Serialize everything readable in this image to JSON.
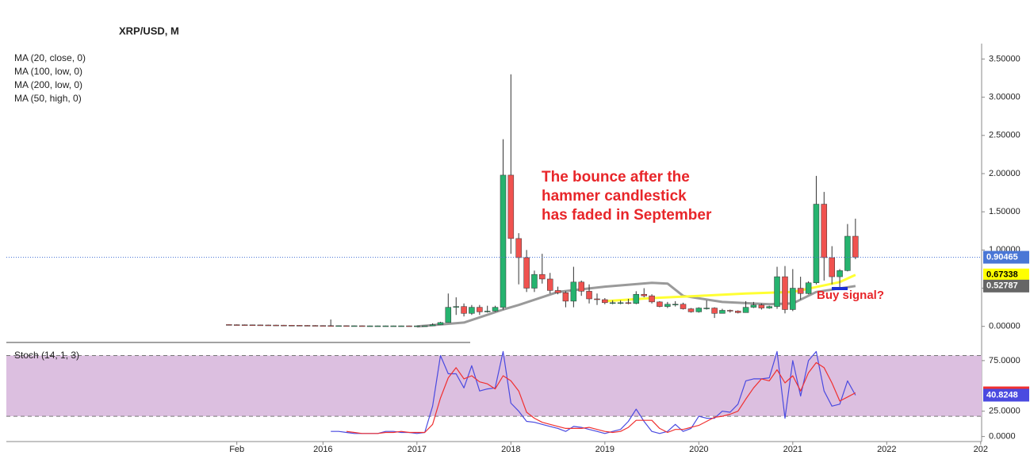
{
  "chart_data": [
    {
      "type": "candlestick",
      "title": "XRP/USD, M",
      "indicator_labels": [
        "MA (20, close, 0)",
        "MA (100, low, 0)",
        "MA (200, low, 0)",
        "MA (50, high, 0)"
      ],
      "annotation": [
        "The bounce after the",
        "hammer candlestick",
        "has faded in September"
      ],
      "annotation_2": "Buy signal?",
      "up_color": "#26b36f",
      "down_color": "#f0524f",
      "xlim": [
        2012.63,
        2023.01
      ],
      "xticks": [
        {
          "value": 2015.083,
          "label": "Feb"
        },
        2016,
        2017,
        2018,
        2019,
        2020,
        2021,
        2022,
        {
          "value": 2023,
          "label": "202"
        }
      ],
      "ylim": [
        -0.19,
        3.65
      ],
      "yticks": [
        {
          "value": 0,
          "label": "0.00000"
        },
        {
          "value": 0.5,
          "label": "0.50000"
        },
        {
          "value": 1,
          "label": "1.00000"
        },
        {
          "value": 1.5,
          "label": "1.50000"
        },
        {
          "value": 2,
          "label": "2.00000"
        },
        {
          "value": 2.5,
          "label": "2.50000"
        },
        {
          "value": 3,
          "label": "3.00000"
        },
        {
          "value": 3.5,
          "label": "3.50000"
        }
      ],
      "x": [
        2015,
        2015.083,
        2015.167,
        2015.25,
        2015.333,
        2015.417,
        2015.5,
        2015.583,
        2015.667,
        2015.75,
        2015.833,
        2015.917,
        2016,
        2016.083,
        2016.167,
        2016.25,
        2016.333,
        2016.417,
        2016.5,
        2016.583,
        2016.667,
        2016.75,
        2016.833,
        2016.917,
        2017,
        2017.083,
        2017.167,
        2017.25,
        2017.333,
        2017.417,
        2017.5,
        2017.583,
        2017.667,
        2017.75,
        2017.833,
        2017.917,
        2018,
        2018.083,
        2018.167,
        2018.25,
        2018.333,
        2018.417,
        2018.5,
        2018.583,
        2018.667,
        2018.75,
        2018.833,
        2018.917,
        2019,
        2019.083,
        2019.167,
        2019.25,
        2019.333,
        2019.417,
        2019.5,
        2019.583,
        2019.667,
        2019.75,
        2019.833,
        2019.917,
        2020,
        2020.083,
        2020.167,
        2020.25,
        2020.333,
        2020.417,
        2020.5,
        2020.583,
        2020.667,
        2020.75,
        2020.833,
        2020.917,
        2021,
        2021.083,
        2021.167,
        2021.25,
        2021.333,
        2021.417,
        2021.5,
        2021.583,
        2021.667
      ],
      "open": [
        0.024,
        0.022,
        0.021,
        0.02,
        0.019,
        0.018,
        0.017,
        0.016,
        0.015,
        0.014,
        0.013,
        0.012,
        0.011,
        0.01,
        0.009,
        0.009,
        0.008,
        0.008,
        0.007,
        0.007,
        0.007,
        0.007,
        0.007,
        0.007,
        0.0065,
        0.0065,
        0.007,
        0.022,
        0.05,
        0.25,
        0.26,
        0.17,
        0.25,
        0.19,
        0.2,
        0.25,
        1.98,
        1.15,
        0.9,
        0.5,
        0.68,
        0.62,
        0.47,
        0.44,
        0.33,
        0.58,
        0.46,
        0.36,
        0.35,
        0.31,
        0.31,
        0.31,
        0.3,
        0.42,
        0.4,
        0.32,
        0.26,
        0.29,
        0.29,
        0.23,
        0.19,
        0.24,
        0.24,
        0.17,
        0.21,
        0.2,
        0.18,
        0.25,
        0.28,
        0.24,
        0.26,
        0.65,
        0.22,
        0.5,
        0.43,
        0.57,
        1.6,
        0.9,
        0.65,
        0.73,
        1.18
      ],
      "high": [
        0.027,
        0.025,
        0.024,
        0.023,
        0.022,
        0.021,
        0.02,
        0.019,
        0.018,
        0.017,
        0.016,
        0.015,
        0.013,
        0.09,
        0.012,
        0.011,
        0.01,
        0.01,
        0.009,
        0.009,
        0.009,
        0.009,
        0.009,
        0.009,
        0.0075,
        0.0075,
        0.04,
        0.06,
        0.43,
        0.38,
        0.3,
        0.28,
        0.28,
        0.27,
        0.27,
        2.45,
        3.3,
        1.22,
        1.0,
        0.73,
        0.95,
        0.7,
        0.52,
        0.46,
        0.78,
        0.6,
        0.55,
        0.43,
        0.37,
        0.34,
        0.34,
        0.36,
        0.46,
        0.5,
        0.42,
        0.33,
        0.32,
        0.33,
        0.31,
        0.24,
        0.25,
        0.34,
        0.25,
        0.23,
        0.22,
        0.21,
        0.33,
        0.32,
        0.3,
        0.27,
        0.78,
        0.79,
        0.75,
        0.65,
        0.59,
        1.97,
        1.76,
        1.05,
        0.75,
        1.34,
        1.41
      ],
      "low": [
        0.019,
        0.018,
        0.017,
        0.016,
        0.015,
        0.014,
        0.013,
        0.012,
        0.011,
        0.01,
        0.009,
        0.008,
        0.008,
        0.007,
        0.007,
        0.006,
        0.006,
        0.005,
        0.005,
        0.005,
        0.005,
        0.005,
        0.005,
        0.005,
        0.0055,
        0.0055,
        0.0058,
        0.02,
        0.05,
        0.15,
        0.13,
        0.15,
        0.15,
        0.18,
        0.19,
        0.22,
        0.95,
        0.55,
        0.45,
        0.45,
        0.56,
        0.43,
        0.42,
        0.25,
        0.25,
        0.4,
        0.3,
        0.28,
        0.29,
        0.29,
        0.29,
        0.29,
        0.29,
        0.38,
        0.3,
        0.25,
        0.24,
        0.26,
        0.22,
        0.18,
        0.18,
        0.22,
        0.11,
        0.17,
        0.18,
        0.17,
        0.18,
        0.24,
        0.22,
        0.23,
        0.23,
        0.17,
        0.2,
        0.35,
        0.42,
        0.55,
        0.6,
        0.55,
        0.5,
        0.72,
        0.88
      ],
      "close": [
        0.022,
        0.021,
        0.02,
        0.019,
        0.018,
        0.017,
        0.016,
        0.015,
        0.014,
        0.013,
        0.012,
        0.011,
        0.01,
        0.009,
        0.009,
        0.008,
        0.008,
        0.007,
        0.007,
        0.007,
        0.007,
        0.007,
        0.007,
        0.0065,
        0.0065,
        0.007,
        0.022,
        0.05,
        0.25,
        0.26,
        0.17,
        0.25,
        0.19,
        0.2,
        0.25,
        1.98,
        1.15,
        0.9,
        0.5,
        0.68,
        0.62,
        0.47,
        0.44,
        0.33,
        0.58,
        0.46,
        0.36,
        0.35,
        0.31,
        0.31,
        0.31,
        0.3,
        0.42,
        0.4,
        0.32,
        0.26,
        0.29,
        0.29,
        0.23,
        0.19,
        0.24,
        0.24,
        0.17,
        0.21,
        0.2,
        0.18,
        0.25,
        0.28,
        0.24,
        0.26,
        0.65,
        0.22,
        0.5,
        0.43,
        0.57,
        1.6,
        0.9,
        0.65,
        0.73,
        1.18,
        0.90465
      ],
      "last_color": "#4a77d6",
      "overlays": [
        {
          "color": "#ffff33",
          "x": [
            2019.0,
            2019.5,
            2020.0,
            2020.5,
            2021.0,
            2021.5,
            2021.667
          ],
          "values": [
            0.33,
            0.37,
            0.4,
            0.43,
            0.45,
            0.58,
            0.67338
          ]
        },
        {
          "color": "#9a9a9a",
          "x": [
            2017.0,
            2017.5,
            2017.917,
            2018.083,
            2018.5,
            2019.0,
            2019.5,
            2019.667,
            2019.833,
            2020.25,
            2020.75,
            2021.0,
            2021.25,
            2021.667
          ],
          "values": [
            0.0,
            0.05,
            0.22,
            0.28,
            0.45,
            0.52,
            0.57,
            0.56,
            0.4,
            0.32,
            0.29,
            0.3,
            0.45,
            0.52787
          ]
        }
      ]
    },
    {
      "type": "stochastic",
      "title": "Stoch (14, 1, 3)",
      "ylim": [
        -5,
        89
      ],
      "band": [
        20,
        80
      ],
      "band_color": "#dcbfe0",
      "yticks": [
        {
          "value": 0,
          "label": "0.0000"
        },
        {
          "value": 25,
          "label": "25.0000"
        },
        {
          "value": 75,
          "label": "75.0000"
        }
      ],
      "x": [
        2015,
        2015.083,
        2015.167,
        2015.25,
        2015.333,
        2015.417,
        2015.5,
        2015.583,
        2015.667,
        2015.75,
        2015.833,
        2015.917,
        2016,
        2016.083,
        2016.167,
        2016.25,
        2016.333,
        2016.417,
        2016.5,
        2016.583,
        2016.667,
        2016.75,
        2016.833,
        2016.917,
        2017,
        2017.083,
        2017.167,
        2017.25,
        2017.333,
        2017.417,
        2017.5,
        2017.583,
        2017.667,
        2017.75,
        2017.833,
        2017.917,
        2018,
        2018.083,
        2018.167,
        2018.25,
        2018.333,
        2018.417,
        2018.5,
        2018.583,
        2018.667,
        2018.75,
        2018.833,
        2018.917,
        2019,
        2019.083,
        2019.167,
        2019.25,
        2019.333,
        2019.417,
        2019.5,
        2019.583,
        2019.667,
        2019.75,
        2019.833,
        2019.917,
        2020,
        2020.083,
        2020.167,
        2020.25,
        2020.333,
        2020.417,
        2020.5,
        2020.583,
        2020.667,
        2020.75,
        2020.833,
        2020.917,
        2021,
        2021.083,
        2021.167,
        2021.25,
        2021.333,
        2021.417,
        2021.5,
        2021.583,
        2021.667
      ],
      "series": [
        {
          "color": "#4a4ae0",
          "values": [
            null,
            null,
            null,
            null,
            null,
            null,
            null,
            null,
            null,
            null,
            null,
            null,
            null,
            5,
            5,
            4,
            3,
            3,
            3,
            3,
            5,
            5,
            4,
            4,
            3,
            4,
            30,
            80,
            62,
            62,
            48,
            70,
            45,
            47,
            48,
            84,
            33,
            25,
            15,
            14,
            12,
            10,
            8,
            5,
            10,
            9,
            7,
            5,
            3,
            5,
            7,
            15,
            27,
            15,
            5,
            3,
            5,
            12,
            5,
            8,
            20,
            18,
            18,
            25,
            24,
            32,
            55,
            57,
            57,
            58,
            84,
            18,
            75,
            40,
            75,
            84,
            45,
            30,
            32,
            55,
            40.8248
          ]
        },
        {
          "color": "#f03030",
          "values": [
            null,
            null,
            null,
            null,
            null,
            null,
            null,
            null,
            null,
            null,
            null,
            null,
            null,
            null,
            null,
            5,
            4,
            3,
            3,
            3,
            4,
            4,
            5,
            4,
            4,
            4,
            12,
            38,
            58,
            68,
            57,
            60,
            54,
            52,
            47,
            60,
            55,
            45,
            24,
            18,
            14,
            12,
            10,
            8,
            8,
            8,
            9,
            7,
            5,
            4,
            5,
            9,
            16,
            16,
            16,
            8,
            4,
            7,
            7,
            9,
            11,
            15,
            19,
            20,
            22,
            25,
            37,
            48,
            57,
            55,
            66,
            53,
            60,
            45,
            63,
            73,
            68,
            53,
            35,
            39,
            43.1436
          ]
        }
      ]
    }
  ]
}
